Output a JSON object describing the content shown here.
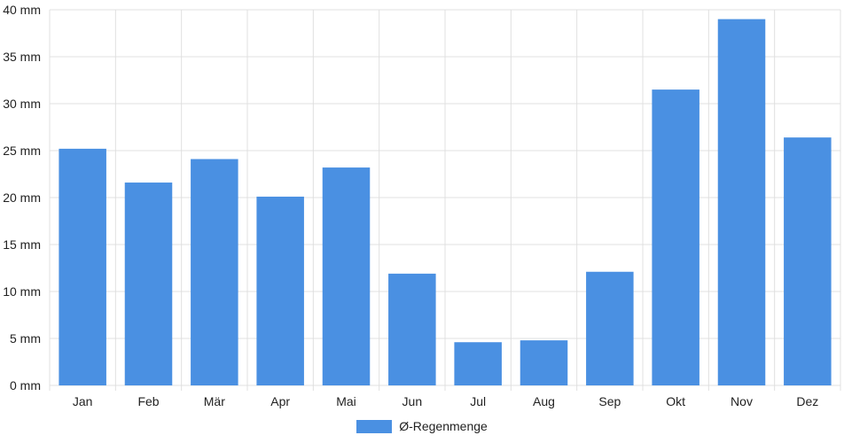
{
  "chart_data": {
    "type": "bar",
    "categories": [
      "Jan",
      "Feb",
      "Mär",
      "Apr",
      "Mai",
      "Jun",
      "Jul",
      "Aug",
      "Sep",
      "Okt",
      "Nov",
      "Dez"
    ],
    "series": [
      {
        "name": "Ø-Regenmenge",
        "values": [
          25.2,
          21.6,
          24.1,
          20.1,
          23.2,
          11.9,
          4.6,
          4.8,
          12.1,
          31.5,
          39.0,
          26.4
        ]
      }
    ],
    "unit": "mm",
    "ylim": [
      0,
      40
    ],
    "yticks": [
      "0 mm",
      "5 mm",
      "10 mm",
      "15 mm",
      "20 mm",
      "25 mm",
      "30 mm",
      "35 mm",
      "40 mm"
    ],
    "grid": true,
    "legend": "bottom",
    "colors": {
      "bar": "#4a90e2",
      "grid": "#e0e0e0",
      "text": "#222222"
    }
  }
}
